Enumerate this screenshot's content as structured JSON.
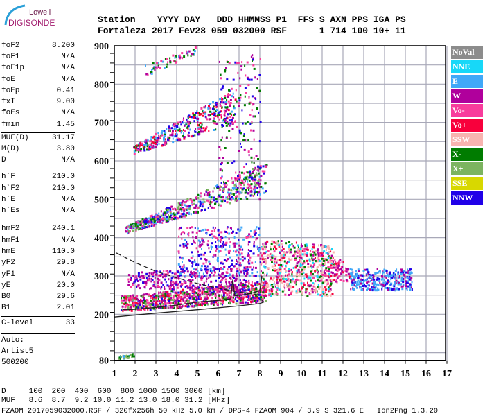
{
  "logo": {
    "line1": "Lowell",
    "line2": "DIGISONDE"
  },
  "header": {
    "row1": "Station    YYYY DAY   DDD HHMMSS P1  FFS S AXN PPS IGA PS",
    "row2": "Fortaleza 2017 Fev28 059 032000 RSF      1 714 100 10+ 11"
  },
  "params": [
    {
      "label": "foF2",
      "value": "8.200"
    },
    {
      "label": "foF1",
      "value": "N/A"
    },
    {
      "label": "foF1p",
      "value": "N/A"
    },
    {
      "label": "foE",
      "value": "N/A"
    },
    {
      "label": "foEp",
      "value": "0.41"
    },
    {
      "label": "fxI",
      "value": "9.00"
    },
    {
      "label": "foEs",
      "value": "N/A"
    },
    {
      "label": "fmin",
      "value": "1.45"
    },
    {
      "label": "MUF(D)",
      "value": "31.17"
    },
    {
      "label": "M(D)",
      "value": "3.80"
    },
    {
      "label": "D",
      "value": "N/A"
    },
    {
      "label": "h`F",
      "value": "210.0"
    },
    {
      "label": "h`F2",
      "value": "210.0"
    },
    {
      "label": "h`E",
      "value": "N/A"
    },
    {
      "label": "h`Es",
      "value": "N/A"
    },
    {
      "label": "hmF2",
      "value": "240.1"
    },
    {
      "label": "hmF1",
      "value": "N/A"
    },
    {
      "label": "hmE",
      "value": "110.0"
    },
    {
      "label": "yF2",
      "value": "29.8"
    },
    {
      "label": "yF1",
      "value": "N/A"
    },
    {
      "label": "yE",
      "value": "20.0"
    },
    {
      "label": "B0",
      "value": "29.6"
    },
    {
      "label": "B1",
      "value": "2.01"
    },
    {
      "label": "C-level",
      "value": "33"
    }
  ],
  "autoscale": {
    "line1": "Auto:",
    "line2": "Artist5",
    "line3": "500200"
  },
  "footer": {
    "d_row": "D     100  200  400  600  800 1000 1500 3000 [km]",
    "muf_row": "MUF   8.6  8.7  9.2 10.0 11.2 13.0 18.0 31.2 [MHz]",
    "file_row": "FZAOM_2017059032000.RSF / 320fx256h 50 kHz 5.0 km / DPS-4 FZAOM 904 / 3.9 S 321.6 E   Ion2Png 1.3.20"
  },
  "legend": [
    {
      "label": "NoVal",
      "color": "#8c8c8c"
    },
    {
      "label": "NNE",
      "color": "#17d8f8"
    },
    {
      "label": "E",
      "color": "#40a8f8"
    },
    {
      "label": "W",
      "color": "#b0009c"
    },
    {
      "label": "Vo-",
      "color": "#f83c9c"
    },
    {
      "label": "Vo+",
      "color": "#f8003c"
    },
    {
      "label": "SSW",
      "color": "#f8b4b0"
    },
    {
      "label": "X-",
      "color": "#007c00"
    },
    {
      "label": "X+",
      "color": "#7cb460"
    },
    {
      "label": "SSE",
      "color": "#d8d800"
    },
    {
      "label": "NNW",
      "color": "#2000e8"
    }
  ],
  "chart_data": {
    "type": "scatter",
    "xlabel": "",
    "ylabel": "",
    "xlim": [
      1,
      17
    ],
    "ylim": [
      80,
      900
    ],
    "xticks": [
      "1",
      "2",
      "3",
      "4",
      "5",
      "6",
      "7",
      "8",
      "9",
      "10",
      "11",
      "12",
      "13",
      "14",
      "15",
      "16",
      "17"
    ],
    "yticks": [
      {
        "v": 900,
        "t": "900"
      },
      {
        "v": 800,
        "t": "800"
      },
      {
        "v": 700,
        "t": "700"
      },
      {
        "v": 600,
        "t": "600"
      },
      {
        "v": 500,
        "t": "500"
      },
      {
        "v": 400,
        "t": "400"
      },
      {
        "v": 300,
        "t": "300"
      },
      {
        "v": 200,
        "t": "200"
      },
      {
        "v": 80,
        "t": "80"
      }
    ],
    "grid": true,
    "legend_position": "right",
    "echo_regions": [
      {
        "f": [
          1.2,
          1.9
        ],
        "h_start": [
          85,
          95
        ],
        "h_end": [
          90,
          100
        ],
        "n": 30,
        "colors": [
          "E",
          "X-",
          "X+"
        ]
      },
      {
        "f": [
          1.3,
          8.3
        ],
        "h_start": [
          210,
          250
        ],
        "h_end": [
          235,
          290
        ],
        "n": 900,
        "colors": [
          "W",
          "Vo-",
          "Vo+",
          "NNW",
          "X-",
          "X+",
          "W",
          "Vo-"
        ]
      },
      {
        "f": [
          1.6,
          7.5
        ],
        "h_start": [
          270,
          310
        ],
        "h_end": [
          260,
          330
        ],
        "n": 350,
        "colors": [
          "W",
          "W",
          "Vo-",
          "NNW"
        ]
      },
      {
        "f": [
          4,
          8
        ],
        "h_start": [
          300,
          430
        ],
        "h_end": [
          300,
          430
        ],
        "n": 350,
        "colors": [
          "NNW",
          "W",
          "Vo-",
          "E"
        ]
      },
      {
        "f": [
          8,
          11.5
        ],
        "h_start": [
          250,
          400
        ],
        "h_end": [
          250,
          380
        ],
        "n": 700,
        "colors": [
          "SSW",
          "SSW",
          "Vo+",
          "NNE",
          "W",
          "X-",
          "Vo-"
        ]
      },
      {
        "f": [
          11.5,
          12.3
        ],
        "h_start": [
          285,
          345
        ],
        "h_end": [
          285,
          345
        ],
        "n": 60,
        "colors": [
          "Vo-",
          "W",
          "Vo+"
        ]
      },
      {
        "f": [
          12.3,
          15.3
        ],
        "h_start": [
          265,
          320
        ],
        "h_end": [
          265,
          320
        ],
        "n": 320,
        "colors": [
          "E",
          "E",
          "NNW",
          "W"
        ]
      },
      {
        "f": [
          1.5,
          8.3
        ],
        "h_start": [
          412,
          430
        ],
        "h_end": [
          520,
          600
        ],
        "n": 600,
        "colors": [
          "W",
          "Vo-",
          "NNW",
          "X-",
          "X+",
          "E"
        ]
      },
      {
        "f": [
          1.9,
          6.8
        ],
        "h_start": [
          620,
          640
        ],
        "h_end": [
          700,
          790
        ],
        "n": 400,
        "colors": [
          "W",
          "Vo-",
          "NNW",
          "X-",
          "E",
          "Vo+"
        ]
      },
      {
        "f": [
          2.4,
          4.9
        ],
        "h_start": [
          820,
          850
        ],
        "h_end": [
          880,
          900
        ],
        "n": 60,
        "colors": [
          "Vo-",
          "E",
          "X-",
          "W"
        ]
      },
      {
        "f": [
          6,
          8
        ],
        "h_start": [
          500,
          880
        ],
        "h_end": [
          500,
          880
        ],
        "n": 200,
        "colors": [
          "W",
          "Vo-",
          "NNW",
          "X-"
        ]
      }
    ],
    "lines": [
      {
        "style": "solid",
        "points": [
          [
            1,
            193
          ],
          [
            3,
            203
          ],
          [
            5,
            212
          ],
          [
            7,
            222
          ],
          [
            8,
            228
          ],
          [
            8.2,
            232
          ],
          [
            8.1,
            236
          ]
        ]
      },
      {
        "style": "dashed",
        "points": [
          [
            1.1,
            360
          ],
          [
            2,
            335
          ],
          [
            3,
            312
          ],
          [
            4,
            295
          ],
          [
            5,
            280
          ],
          [
            6,
            268
          ],
          [
            7,
            258
          ],
          [
            8,
            250
          ]
        ]
      },
      {
        "style": "solid",
        "points": [
          [
            1.4,
            212
          ],
          [
            2,
            213
          ],
          [
            3,
            218
          ],
          [
            4,
            224
          ],
          [
            5,
            232
          ],
          [
            6,
            236
          ],
          [
            6.6,
            240
          ],
          [
            6.7,
            290
          ],
          [
            6.8,
            248
          ],
          [
            7.5,
            253
          ],
          [
            8,
            262
          ],
          [
            8.1,
            300
          ]
        ]
      }
    ]
  }
}
